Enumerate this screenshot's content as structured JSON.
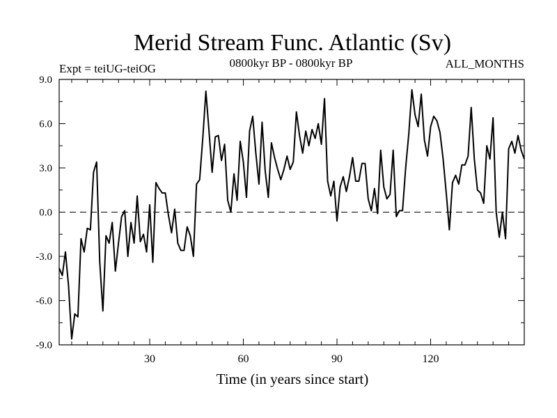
{
  "chart_data": {
    "type": "line",
    "title": "Merid Stream Func. Atlantic (Sv)",
    "subtitle_left": "Expt = teiUG-teiOG",
    "subtitle_center": "0800kyr BP - 0800kyr BP",
    "subtitle_right": "ALL_MONTHS",
    "xlabel": "Time (in years since start)",
    "ylabel": "",
    "xlim": [
      1,
      150
    ],
    "ylim": [
      -9,
      9
    ],
    "xticks": [
      30,
      60,
      90,
      120
    ],
    "xtick_labels": [
      "30",
      "60",
      "90",
      "120"
    ],
    "yticks": [
      -9,
      -6,
      -3,
      0,
      3,
      6,
      9
    ],
    "ytick_labels": [
      "-9.0",
      "-6.0",
      "-3.0",
      "0.0",
      "3.0",
      "6.0",
      "9.0"
    ],
    "zero_line": true,
    "series": [
      {
        "name": "teiUG-teiOG",
        "x": [
          1,
          2,
          3,
          4,
          5,
          6,
          7,
          8,
          9,
          10,
          11,
          12,
          13,
          14,
          15,
          16,
          17,
          18,
          19,
          20,
          21,
          22,
          23,
          24,
          25,
          26,
          27,
          28,
          29,
          30,
          31,
          32,
          33,
          34,
          35,
          36,
          37,
          38,
          39,
          40,
          41,
          42,
          43,
          44,
          45,
          46,
          47,
          48,
          49,
          50,
          51,
          52,
          53,
          54,
          55,
          56,
          57,
          58,
          59,
          60,
          61,
          62,
          63,
          64,
          65,
          66,
          67,
          68,
          69,
          70,
          71,
          72,
          73,
          74,
          75,
          76,
          77,
          78,
          79,
          80,
          81,
          82,
          83,
          84,
          85,
          86,
          87,
          88,
          89,
          90,
          91,
          92,
          93,
          94,
          95,
          96,
          97,
          98,
          99,
          100,
          101,
          102,
          103,
          104,
          105,
          106,
          107,
          108,
          109,
          110,
          111,
          112,
          113,
          114,
          115,
          116,
          117,
          118,
          119,
          120,
          121,
          122,
          123,
          124,
          125,
          126,
          127,
          128,
          129,
          130,
          131,
          132,
          133,
          134,
          135,
          136,
          137,
          138,
          139,
          140,
          141,
          142,
          143,
          144,
          145,
          146,
          147,
          148,
          149,
          150
        ],
        "values": [
          -3.8,
          -4.3,
          -2.7,
          -5.0,
          -8.6,
          -6.9,
          -7.1,
          -1.8,
          -2.7,
          -1.1,
          -1.2,
          2.7,
          3.4,
          -3.4,
          -6.7,
          -1.6,
          -2.1,
          -0.7,
          -4.0,
          -2.1,
          -0.3,
          0.1,
          -3.0,
          -0.7,
          -2.1,
          1.1,
          -2.0,
          -1.5,
          -2.7,
          0.5,
          -3.4,
          2.0,
          1.6,
          1.3,
          1.3,
          -0.2,
          -1.4,
          0.2,
          -2.1,
          -2.6,
          -2.6,
          -1.0,
          -1.6,
          -3.0,
          1.9,
          2.2,
          5.0,
          8.2,
          5.5,
          2.7,
          5.1,
          5.2,
          3.5,
          4.6,
          0.8,
          0.0,
          2.6,
          0.8,
          4.8,
          3.4,
          1.0,
          5.5,
          6.5,
          4.0,
          1.9,
          6.1,
          2.8,
          1.0,
          4.7,
          3.7,
          2.9,
          2.2,
          2.9,
          3.8,
          2.9,
          3.4,
          6.8,
          5.2,
          4.0,
          5.5,
          4.5,
          5.6,
          5.0,
          6.0,
          4.6,
          7.7,
          2.1,
          1.1,
          2.1,
          -0.6,
          1.7,
          2.4,
          1.4,
          2.4,
          3.7,
          2.1,
          2.1,
          3.3,
          3.3,
          0.9,
          0.1,
          1.6,
          -0.1,
          4.2,
          1.7,
          0.9,
          1.2,
          4.2,
          -0.3,
          0.1,
          0.1,
          3.0,
          5.3,
          8.3,
          6.6,
          5.8,
          8.0,
          4.9,
          3.8,
          5.8,
          6.5,
          6.2,
          5.4,
          3.6,
          1.3,
          -1.2,
          2.0,
          2.5,
          1.9,
          3.2,
          3.2,
          3.8,
          7.1,
          3.6,
          1.5,
          1.3,
          0.6,
          4.5,
          3.6,
          6.4,
          0.0,
          -1.7,
          0.0,
          -1.8,
          4.3,
          4.8,
          4.0,
          5.2,
          4.2,
          3.6
        ]
      }
    ]
  }
}
